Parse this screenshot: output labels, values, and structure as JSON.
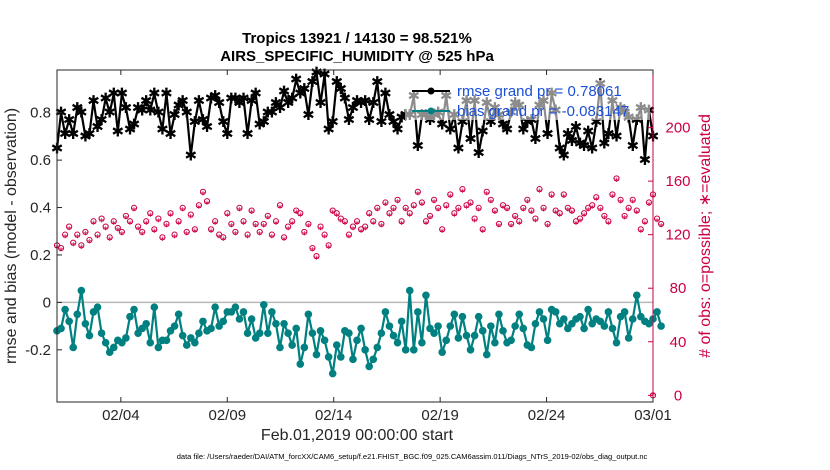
{
  "chart_data": {
    "type": "line",
    "title": "Tropics 13921 / 14130 = 98.521%",
    "subtitle": "AIRS_SPECIFIC_HUMIDITY @ 525 hPa",
    "xlabel": "Feb.01,2019 00:00:00 start",
    "ylabel": "rmse and bias (model - observation)",
    "ylabel_right": "# of obs: o=possible; ∗=evaluated",
    "x_ticks": [
      "02/04",
      "02/09",
      "02/14",
      "02/19",
      "02/24",
      "03/01"
    ],
    "x_tick_days": [
      3,
      8,
      13,
      18,
      23,
      28
    ],
    "xlim_days": [
      0,
      28
    ],
    "ylim": [
      -0.42,
      0.98
    ],
    "y_ticks": [
      -0.2,
      0,
      0.2,
      0.4,
      0.6,
      0.8
    ],
    "y_tick_labels": [
      "-0.2",
      "0",
      "0.2",
      "0.4",
      "0.6",
      "0.8"
    ],
    "ylim_right": [
      -5,
      243
    ],
    "y_ticks_right": [
      0,
      40,
      80,
      120,
      160,
      200
    ],
    "legend": {
      "placement": "top-right",
      "entries": [
        "rmse grand pr = 0.78061",
        "bias grand pr = -0.083147"
      ]
    },
    "footnote": "data file: /Users/raeder/DAI/ATM_forcXX/CAM6_setup/f.e21.FHIST_BGC.f09_025.CAM6assim.011/Diags_NTrS_2019-02/obs_diag_output.nc",
    "series": [
      {
        "name": "rmse",
        "color": "#000000",
        "values": [
          0.65,
          0.8,
          0.71,
          0.77,
          0.71,
          0.82,
          0.8,
          0.7,
          0.71,
          0.85,
          0.74,
          0.77,
          0.86,
          0.8,
          0.88,
          0.72,
          0.88,
          0.82,
          0.73,
          0.75,
          0.82,
          0.81,
          0.85,
          0.81,
          0.88,
          0.8,
          0.73,
          0.88,
          0.71,
          0.79,
          0.83,
          0.85,
          0.8,
          0.62,
          0.76,
          0.85,
          0.77,
          0.74,
          0.86,
          0.87,
          0.84,
          0.76,
          0.71,
          0.86,
          0.86,
          0.84,
          0.86,
          0.71,
          0.85,
          0.88,
          0.75,
          0.76,
          0.8,
          0.8,
          0.84,
          0.82,
          0.89,
          0.84,
          0.86,
          0.94,
          0.88,
          0.9,
          0.79,
          0.93,
          0.97,
          0.84,
          0.96,
          0.73,
          0.76,
          0.93,
          0.9,
          0.86,
          0.77,
          0.82,
          0.85,
          0.84,
          0.85,
          0.77,
          0.84,
          0.93,
          0.76,
          0.88,
          0.79,
          0.76,
          0.73,
          0.78,
          0.79,
          0.79,
          0.87,
          0.66,
          0.79,
          0.79,
          0.77,
          0.79,
          0.8,
          0.75,
          0.87,
          0.73,
          0.79,
          0.65,
          0.76,
          0.85,
          0.69,
          0.85,
          0.63,
          0.72,
          0.84,
          0.76,
          0.82,
          0.79,
          0.75,
          0.73,
          0.8,
          0.84,
          0.83,
          0.73,
          0.76,
          0.77,
          0.69,
          0.83,
          0.85,
          0.71,
          0.88,
          0.81,
          0.65,
          0.62,
          0.71,
          0.68,
          0.74,
          0.67,
          0.66,
          0.72,
          0.65,
          0.76,
          0.92,
          0.67,
          0.71,
          0.85,
          0.7,
          0.82,
          0.8,
          0.78,
          0.66,
          0.77,
          0.82,
          0.6,
          0.81,
          0.7
        ]
      },
      {
        "name": "bias",
        "color": "#008080",
        "values": [
          -0.12,
          -0.11,
          -0.03,
          -0.08,
          -0.19,
          -0.05,
          0.05,
          -0.09,
          -0.14,
          -0.04,
          -0.02,
          -0.13,
          -0.17,
          -0.21,
          -0.19,
          -0.16,
          -0.17,
          -0.15,
          -0.06,
          -0.03,
          -0.13,
          -0.11,
          -0.09,
          -0.17,
          -0.02,
          -0.19,
          -0.16,
          -0.16,
          -0.12,
          -0.1,
          -0.05,
          -0.14,
          -0.18,
          -0.15,
          -0.17,
          -0.13,
          -0.08,
          -0.12,
          -0.11,
          -0.02,
          -0.1,
          -0.08,
          -0.04,
          -0.04,
          -0.02,
          -0.07,
          -0.04,
          -0.13,
          -0.07,
          -0.15,
          -0.13,
          -0.01,
          -0.13,
          -0.04,
          -0.09,
          -0.19,
          -0.09,
          -0.13,
          -0.18,
          -0.11,
          -0.26,
          -0.19,
          -0.05,
          -0.13,
          -0.22,
          -0.12,
          -0.16,
          -0.23,
          -0.3,
          -0.18,
          -0.23,
          -0.12,
          -0.13,
          -0.24,
          -0.16,
          -0.11,
          -0.2,
          -0.27,
          -0.24,
          -0.19,
          -0.13,
          -0.04,
          -0.1,
          -0.14,
          -0.17,
          -0.08,
          -0.2,
          0.05,
          -0.2,
          -0.04,
          -0.17,
          0.03,
          -0.11,
          -0.13,
          -0.1,
          -0.21,
          -0.16,
          -0.1,
          -0.05,
          -0.15,
          -0.06,
          -0.14,
          -0.2,
          -0.14,
          -0.06,
          -0.12,
          -0.22,
          -0.1,
          -0.17,
          -0.05,
          -0.12,
          -0.17,
          -0.16,
          -0.1,
          -0.05,
          -0.11,
          -0.18,
          -0.19,
          -0.09,
          -0.04,
          -0.07,
          -0.16,
          -0.03,
          -0.04,
          -0.09,
          -0.07,
          -0.11,
          -0.09,
          -0.07,
          -0.06,
          -0.11,
          -0.03,
          -0.09,
          -0.07,
          -0.08,
          -0.1,
          -0.04,
          -0.11,
          -0.17,
          -0.06,
          -0.04,
          -0.15,
          -0.07,
          0.03,
          -0.06,
          -0.08,
          -0.09,
          -0.07,
          -0.04,
          -0.1
        ]
      },
      {
        "name": "obs possible",
        "color": "#cc0044",
        "marker": "o",
        "axis": "right",
        "values": [
          112,
          110,
          120,
          126,
          114,
          120,
          112,
          122,
          116,
          130,
          120,
          132,
          126,
          118,
          130,
          125,
          122,
          134,
          130,
          140,
          126,
          122,
          130,
          136,
          124,
          132,
          118,
          128,
          136,
          120,
          130,
          140,
          122,
          135,
          124,
          142,
          152,
          145,
          124,
          130,
          120,
          118,
          136,
          128,
          122,
          140,
          130,
          120,
          138,
          128,
          122,
          128,
          134,
          120,
          130,
          142,
          118,
          126,
          130,
          138,
          136,
          122,
          128,
          110,
          104,
          126,
          120,
          112,
          138,
          136,
          132,
          130,
          120,
          126,
          130,
          124,
          126,
          136,
          130,
          140,
          128,
          144,
          136,
          140,
          146,
          130,
          140,
          136,
          142,
          152,
          144,
          130,
          134,
          146,
          140,
          124,
          142,
          150,
          136,
          140,
          154,
          142,
          144,
          132,
          140,
          124,
          152,
          146,
          138,
          128,
          142,
          140,
          128,
          134,
          130,
          140,
          146,
          138,
          132,
          154,
          140,
          128,
          150,
          138,
          136,
          150,
          140,
          138,
          130,
          132,
          136,
          140,
          142,
          148,
          140,
          134,
          130,
          150,
          162,
          146,
          134,
          140,
          146,
          138,
          124,
          130,
          144,
          150,
          132,
          128
        ]
      },
      {
        "name": "obs evaluated",
        "color": "#cc0044",
        "marker": "*",
        "axis": "right",
        "values": [
          110,
          108,
          118,
          124,
          112,
          118,
          110,
          120,
          114,
          128,
          118,
          130,
          124,
          116,
          128,
          123,
          120,
          132,
          128,
          138,
          124,
          120,
          128,
          134,
          122,
          130,
          116,
          126,
          134,
          118,
          128,
          138,
          120,
          133,
          122,
          140,
          150,
          143,
          122,
          128,
          118,
          116,
          134,
          126,
          120,
          138,
          128,
          118,
          136,
          126,
          120,
          126,
          132,
          118,
          128,
          140,
          116,
          124,
          128,
          136,
          134,
          120,
          126,
          108,
          102,
          124,
          118,
          110,
          136,
          134,
          130,
          128,
          118,
          124,
          128,
          122,
          124,
          134,
          128,
          138,
          126,
          142,
          134,
          138,
          144,
          128,
          138,
          134,
          140,
          150,
          142,
          128,
          132,
          144,
          138,
          122,
          140,
          148,
          134,
          138,
          152,
          140,
          142,
          130,
          138,
          122,
          150,
          144,
          136,
          126,
          140,
          138,
          126,
          132,
          128,
          138,
          144,
          136,
          130,
          152,
          138,
          126,
          148,
          136,
          134,
          148,
          138,
          136,
          128,
          130,
          134,
          138,
          140,
          146,
          138,
          132,
          128,
          148,
          160,
          144,
          132,
          138,
          144,
          136,
          122,
          128,
          142,
          148,
          130,
          126
        ]
      }
    ]
  }
}
